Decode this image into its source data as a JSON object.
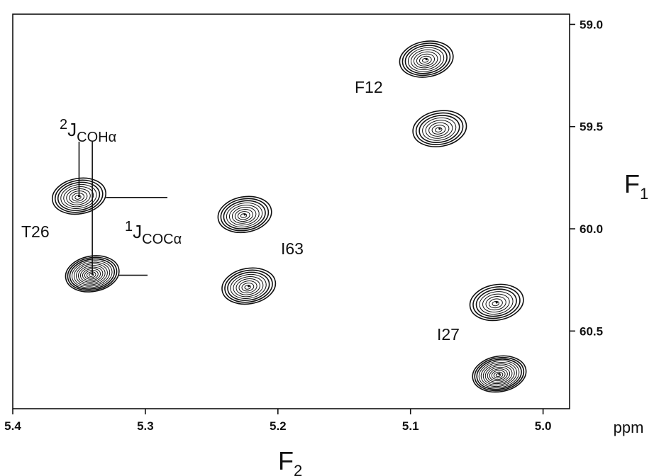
{
  "chart_data": {
    "type": "contour",
    "x_axis": {
      "title": "F",
      "title_sub": "2",
      "unit": "ppm",
      "range": [
        5.4,
        4.98
      ],
      "reversed": true,
      "ticks": [
        5.4,
        5.3,
        5.2,
        5.1,
        5.0
      ],
      "tick_labels": [
        "5.4",
        "5.3",
        "5.2",
        "5.1",
        "5.0"
      ]
    },
    "y_axis": {
      "title": "F",
      "title_sub": "1",
      "position": "right",
      "range": [
        58.95,
        60.88
      ],
      "reversed": true,
      "ticks": [
        59.0,
        59.5,
        60.0,
        60.5
      ],
      "tick_labels": [
        "59.0",
        "59.5",
        "60.0",
        "60.5"
      ]
    },
    "peaks": [
      {
        "residue": "T26",
        "f2": 5.35,
        "f1": 59.84,
        "levels": 9
      },
      {
        "residue": "T26",
        "f2": 5.34,
        "f1": 60.22,
        "levels": 12
      },
      {
        "residue": "I63",
        "f2": 5.225,
        "f1": 59.93,
        "levels": 9
      },
      {
        "residue": "I63",
        "f2": 5.222,
        "f1": 60.28,
        "levels": 9
      },
      {
        "residue": "F12",
        "f2": 5.088,
        "f1": 59.17,
        "levels": 9
      },
      {
        "residue": "F12",
        "f2": 5.078,
        "f1": 59.51,
        "levels": 8
      },
      {
        "residue": "I27",
        "f2": 5.035,
        "f1": 60.36,
        "levels": 8
      },
      {
        "residue": "I27",
        "f2": 5.033,
        "f1": 60.71,
        "levels": 12
      }
    ],
    "annotations": {
      "two_j": {
        "sup": "2",
        "main": "J",
        "sub": "COHα"
      },
      "one_j": {
        "sup": "1",
        "main": "J",
        "sub": "COCα"
      },
      "labels": [
        {
          "text": "F12"
        },
        {
          "text": "T26"
        },
        {
          "text": "I63"
        },
        {
          "text": "I27"
        }
      ]
    },
    "grid": false
  }
}
